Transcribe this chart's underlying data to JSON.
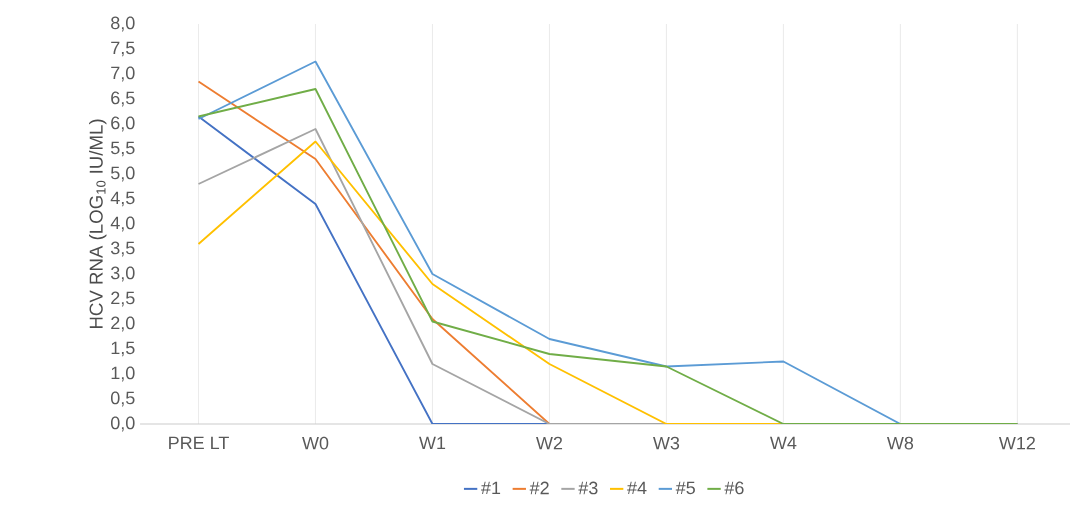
{
  "chart_data": {
    "type": "line",
    "ylabel": "HCV RNA (LOG$_{10}$ IU/ML)",
    "categories": [
      "PRE LT",
      "W0",
      "W1",
      "W2",
      "W3",
      "W4",
      "W8",
      "W12"
    ],
    "series": [
      {
        "name": "#1",
        "color": "#4472c4",
        "values": [
          6.15,
          4.4,
          0,
          0,
          0,
          0,
          0,
          0
        ]
      },
      {
        "name": "#2",
        "color": "#ed7d31",
        "values": [
          6.85,
          5.3,
          2.1,
          0,
          0,
          null,
          null,
          null
        ]
      },
      {
        "name": "#3",
        "color": "#a5a5a5",
        "values": [
          4.8,
          5.9,
          1.2,
          0,
          0,
          0,
          0,
          0
        ]
      },
      {
        "name": "#4",
        "color": "#ffc000",
        "values": [
          3.6,
          5.65,
          2.8,
          1.2,
          0,
          0,
          0,
          0
        ]
      },
      {
        "name": "#5",
        "color": "#5b9bd5",
        "values": [
          6.1,
          7.25,
          3.0,
          1.7,
          1.15,
          1.25,
          0,
          0
        ]
      },
      {
        "name": "#6",
        "color": "#70ad47",
        "values": [
          6.15,
          6.7,
          2.05,
          1.4,
          1.15,
          0,
          0,
          0
        ]
      }
    ],
    "ylim": [
      0,
      8
    ],
    "yticks": [
      {
        "value": 0,
        "label": "0,0"
      },
      {
        "value": 0.5,
        "label": "0,5"
      },
      {
        "value": 1,
        "label": "1,0"
      },
      {
        "value": 1.5,
        "label": "1,5"
      },
      {
        "value": 2,
        "label": "2,0"
      },
      {
        "value": 2.5,
        "label": "2,5"
      },
      {
        "value": 3,
        "label": "3,0"
      },
      {
        "value": 3.5,
        "label": "3,5"
      },
      {
        "value": 4,
        "label": "4,0"
      },
      {
        "value": 4.5,
        "label": "4,5"
      },
      {
        "value": 5,
        "label": "5,0"
      },
      {
        "value": 5.5,
        "label": "5,5"
      },
      {
        "value": 6,
        "label": "6,0"
      },
      {
        "value": 6.5,
        "label": "6,5"
      },
      {
        "value": 7,
        "label": "7,0"
      },
      {
        "value": 7.5,
        "label": "7,5"
      },
      {
        "value": 8,
        "label": "8,0"
      }
    ],
    "grid": "x",
    "legend": "bottom",
    "marker": "none",
    "line_style": "solid"
  }
}
